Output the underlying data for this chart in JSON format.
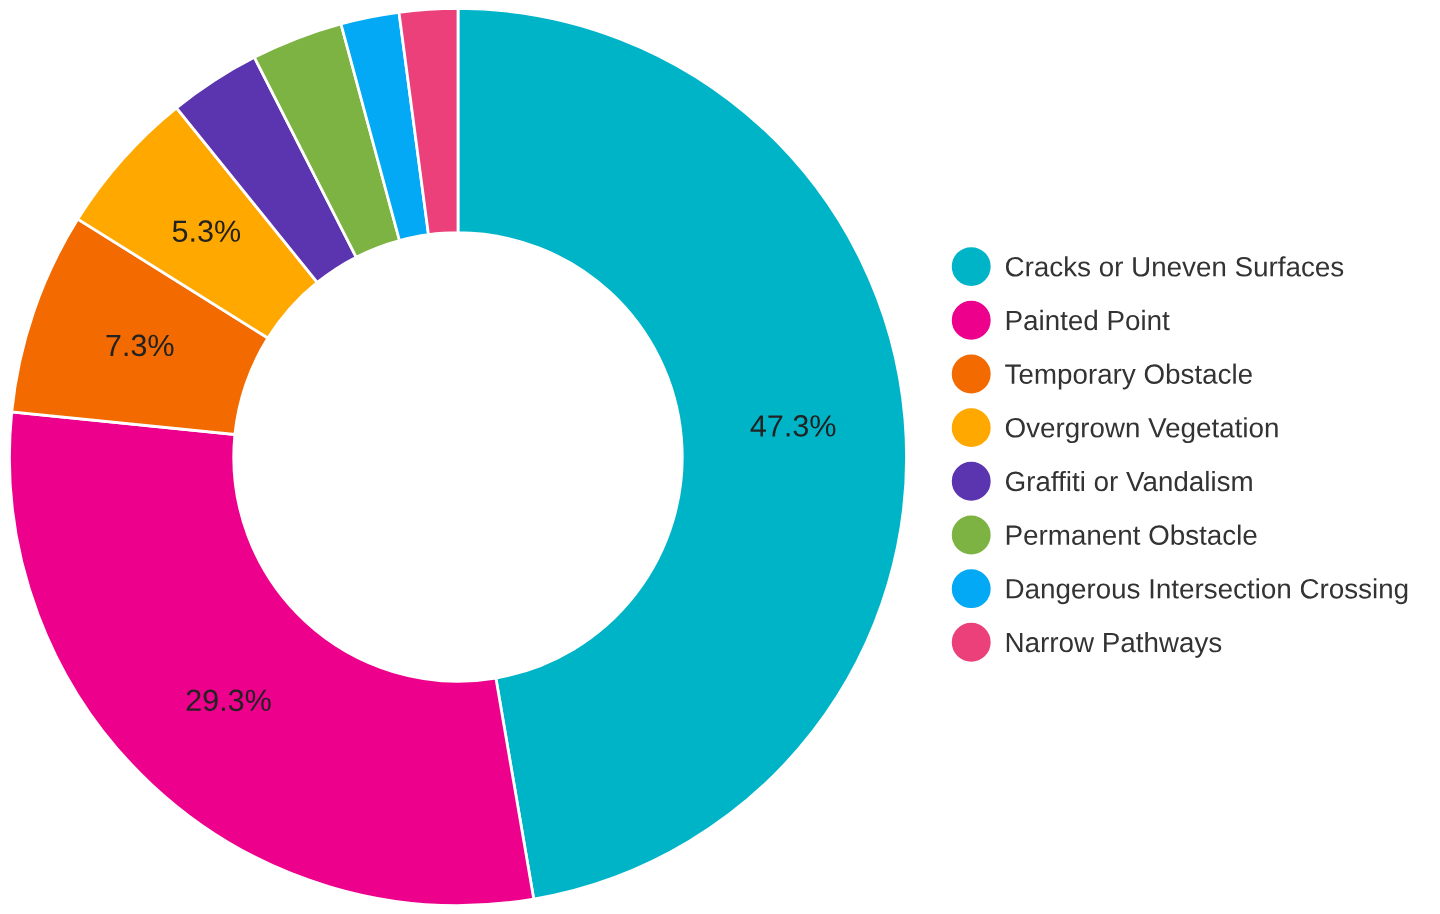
{
  "chart_data": {
    "type": "donut",
    "categories": [
      "Cracks or Uneven Surfaces",
      "Painted Point",
      "Temporary Obstacle",
      "Overgrown Vegetation",
      "Graffiti or Vandalism",
      "Permanent Obstacle",
      "Dangerous Intersection Crossing",
      "Narrow Pathways"
    ],
    "values": [
      47.3,
      29.3,
      7.3,
      5.3,
      3.3,
      3.3,
      2.1,
      2.1
    ],
    "value_labels": [
      "47.3%",
      "29.3%",
      "7.3%",
      "5.3%",
      null,
      null,
      null,
      null
    ],
    "colors": [
      "#00b4c8",
      "#ec008c",
      "#f26a00",
      "#ffa800",
      "#5b34b0",
      "#7cb342",
      "#03a9f4",
      "#ec407a"
    ],
    "legend": "right"
  }
}
